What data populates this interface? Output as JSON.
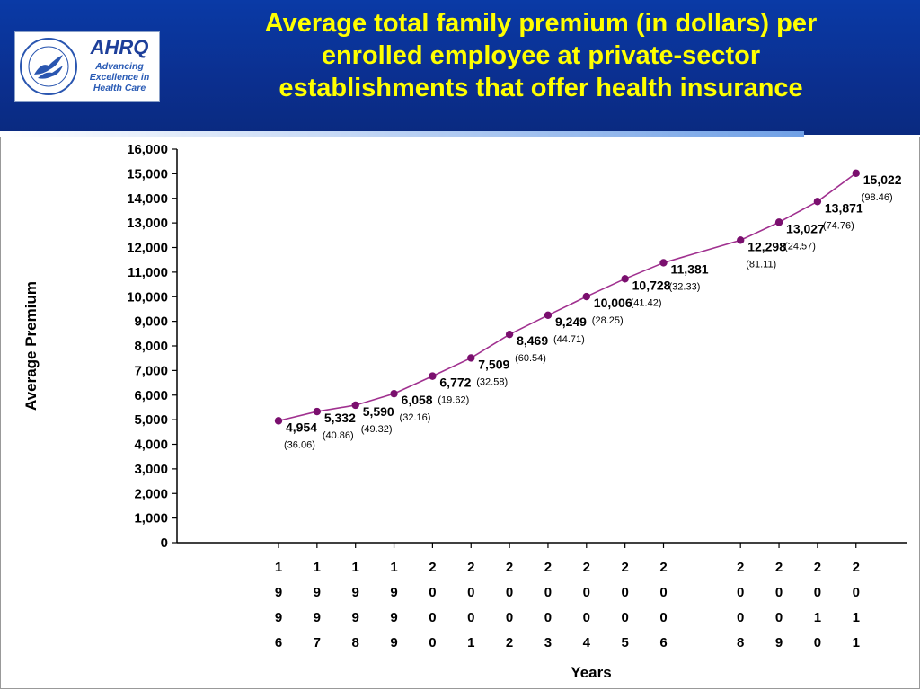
{
  "header": {
    "title_lines": [
      "Average total family premium (in dollars) per",
      "enrolled employee at private-sector",
      "establishments that offer health insurance"
    ],
    "logos": {
      "hhs_seal": "hhs-seal-icon",
      "ahrq_wordmark": "AHRQ",
      "ahrq_tagline": [
        "Advancing",
        "Excellence in",
        "Health Care"
      ]
    },
    "title_color": "#ffff00",
    "background_color": "#0b2f8f"
  },
  "chart_data": {
    "type": "line",
    "title": "",
    "xlabel": "Years",
    "ylabel": "Average  Premium",
    "ylim": [
      0,
      16000
    ],
    "y_ticks": [
      "0",
      "1,000",
      "2,000",
      "3,000",
      "4,000",
      "5,000",
      "6,000",
      "7,000",
      "8,000",
      "9,000",
      "10,000",
      "11,000",
      "12,000",
      "13,000",
      "14,000",
      "15,000",
      "16,000"
    ],
    "grid": false,
    "line_color": "#a0308f",
    "marker_color": "#7a0f6e",
    "series": [
      {
        "points": [
          {
            "year": "1996",
            "value": 4954,
            "label": "4,954",
            "se": "(36.06)"
          },
          {
            "year": "1997",
            "value": 5332,
            "label": "5,332",
            "se": "(40.86)"
          },
          {
            "year": "1998",
            "value": 5590,
            "label": "5,590",
            "se": "(49.32)"
          },
          {
            "year": "1999",
            "value": 6058,
            "label": "6,058",
            "se": "(32.16)"
          },
          {
            "year": "2000",
            "value": 6772,
            "label": "6,772",
            "se": "(19.62)"
          },
          {
            "year": "2001",
            "value": 7509,
            "label": "7,509",
            "se": "(32.58)"
          },
          {
            "year": "2002",
            "value": 8469,
            "label": "8,469",
            "se": "(60.54)"
          },
          {
            "year": "2003",
            "value": 9249,
            "label": "9,249",
            "se": "(44.71)"
          },
          {
            "year": "2004",
            "value": 10006,
            "label": "10,006",
            "se": "(28.25)"
          },
          {
            "year": "2005",
            "value": 10728,
            "label": "10,728",
            "se": "(41.42)"
          },
          {
            "year": "2006",
            "value": 11381,
            "label": "11,381",
            "se": "(32.33)"
          },
          {
            "year": "2008",
            "value": 12298,
            "label": "12,298",
            "se": "(81.11)"
          },
          {
            "year": "2009",
            "value": 13027,
            "label": "13,027",
            "se": "(24.57)"
          },
          {
            "year": "2010",
            "value": 13871,
            "label": "13,871",
            "se": "(74.76)"
          },
          {
            "year": "2011",
            "value": 15022,
            "label": "15,022",
            "se": "(98.46)"
          }
        ]
      }
    ]
  }
}
